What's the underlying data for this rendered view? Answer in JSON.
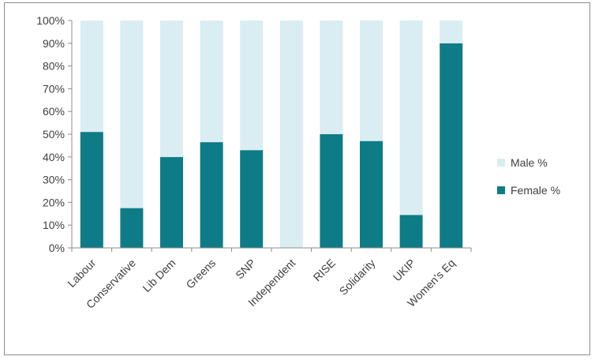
{
  "chart_data": {
    "type": "bar",
    "stacked": true,
    "categories": [
      "Labour",
      "Conservative",
      "Lib Dem",
      "Greens",
      "SNP",
      "Independent",
      "RISE",
      "Solidarity",
      "UKIP",
      "Women's Eq"
    ],
    "series": [
      {
        "name": "Female %",
        "color": "#0e7c86",
        "values": [
          51,
          17.5,
          40,
          46.5,
          43,
          0,
          50,
          47,
          14.5,
          90
        ]
      },
      {
        "name": "Male %",
        "color": "#d9edf2",
        "values": [
          49,
          82.5,
          60,
          53.5,
          57,
          100,
          50,
          53,
          85.5,
          10
        ]
      }
    ],
    "y_ticks": [
      "0%",
      "10%",
      "20%",
      "30%",
      "40%",
      "50%",
      "60%",
      "70%",
      "80%",
      "90%",
      "100%"
    ],
    "ylim": [
      0,
      100
    ],
    "legend_position": "right",
    "grid": false
  }
}
